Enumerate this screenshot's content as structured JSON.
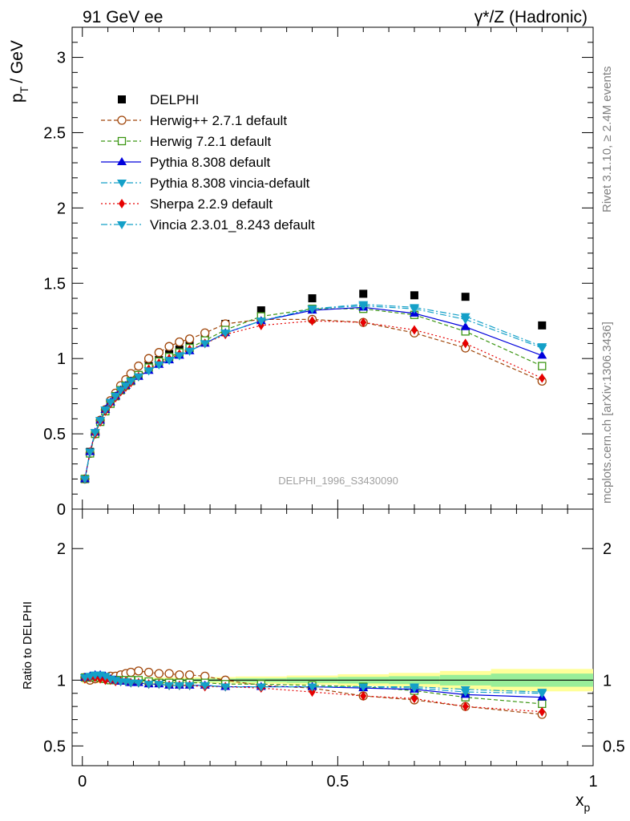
{
  "header": {
    "left": "91 GeV ee",
    "right": "γ*/Z (Hadronic)"
  },
  "side": {
    "rivet": "Rivet 3.1.10, ≥ 2.4M events",
    "mcplots": "mcplots.cern.ch [arXiv:1306.3436]"
  },
  "watermark": "DELPHI_1996_S3430090",
  "colors": {
    "DELPHI": "#000000",
    "Herwig++ 2.7.1 default": "#a0460a",
    "Herwig 7.2.1 default": "#3c9614",
    "Pythia 8.308 default": "#0000dc",
    "Pythia 8.308 vincia-default": "#14a0c8",
    "Sherpa 2.2.9 default": "#e60000",
    "Vincia 2.3.01_8.243 default": "#14a0c8"
  },
  "chart_data": [
    {
      "type": "scatter",
      "panel": "main",
      "ylabel_main": "p",
      "ylabel_sub": "T",
      "ylabel_unit": "/ GeV",
      "ylim": [
        0,
        3.2
      ],
      "yticks": [
        "0",
        "0.5",
        "1",
        "1.5",
        "2",
        "2.5",
        "3"
      ],
      "xlim": [
        -0.02,
        1.0
      ],
      "xticks": [
        "0",
        "0.5",
        "1"
      ],
      "x": [
        0.005,
        0.015,
        0.025,
        0.035,
        0.045,
        0.055,
        0.065,
        0.075,
        0.085,
        0.095,
        0.11,
        0.13,
        0.15,
        0.17,
        0.19,
        0.21,
        0.24,
        0.28,
        0.35,
        0.45,
        0.55,
        0.65,
        0.75,
        0.9
      ],
      "series": [
        {
          "name": "DELPHI",
          "marker": "square",
          "line": "none",
          "values": [
            0.2,
            0.38,
            0.5,
            0.58,
            0.65,
            0.7,
            0.75,
            0.79,
            0.82,
            0.85,
            0.89,
            0.95,
            0.99,
            1.03,
            1.06,
            1.09,
            1.14,
            1.23,
            1.32,
            1.4,
            1.43,
            1.42,
            1.41,
            1.22
          ]
        },
        {
          "name": "Herwig++ 2.7.1 default",
          "marker": "circle-open",
          "line": "dashed",
          "values": [
            0.2,
            0.37,
            0.5,
            0.59,
            0.66,
            0.72,
            0.77,
            0.82,
            0.86,
            0.9,
            0.95,
            1.0,
            1.04,
            1.08,
            1.11,
            1.13,
            1.17,
            1.23,
            1.26,
            1.26,
            1.24,
            1.17,
            1.07,
            0.85
          ]
        },
        {
          "name": "Herwig 7.2.1 default",
          "marker": "square-open",
          "line": "dashed",
          "values": [
            0.2,
            0.37,
            0.5,
            0.58,
            0.65,
            0.7,
            0.75,
            0.79,
            0.82,
            0.85,
            0.89,
            0.94,
            0.98,
            1.01,
            1.04,
            1.07,
            1.12,
            1.19,
            1.28,
            1.33,
            1.33,
            1.29,
            1.18,
            0.95
          ]
        },
        {
          "name": "Pythia 8.308 default",
          "marker": "triangle-up",
          "line": "solid",
          "values": [
            0.2,
            0.38,
            0.51,
            0.59,
            0.66,
            0.71,
            0.75,
            0.79,
            0.82,
            0.85,
            0.88,
            0.92,
            0.96,
            0.99,
            1.02,
            1.05,
            1.1,
            1.17,
            1.25,
            1.32,
            1.34,
            1.3,
            1.21,
            1.02
          ]
        },
        {
          "name": "Pythia 8.308 vincia-default",
          "marker": "triangle-down",
          "line": "dashdot",
          "values": [
            0.2,
            0.38,
            0.51,
            0.59,
            0.66,
            0.71,
            0.75,
            0.79,
            0.82,
            0.85,
            0.88,
            0.92,
            0.96,
            0.99,
            1.02,
            1.05,
            1.1,
            1.17,
            1.25,
            1.33,
            1.36,
            1.34,
            1.28,
            1.08
          ]
        },
        {
          "name": "Sherpa 2.2.9 default",
          "marker": "diamond",
          "line": "dotted",
          "values": [
            0.2,
            0.38,
            0.5,
            0.58,
            0.65,
            0.7,
            0.74,
            0.78,
            0.81,
            0.84,
            0.88,
            0.93,
            0.97,
            1.0,
            1.03,
            1.06,
            1.1,
            1.16,
            1.22,
            1.25,
            1.24,
            1.19,
            1.1,
            0.87
          ]
        },
        {
          "name": "Vincia 2.3.01_8.243 default",
          "marker": "triangle-down",
          "line": "dashdot",
          "values": [
            0.2,
            0.38,
            0.51,
            0.59,
            0.66,
            0.71,
            0.75,
            0.79,
            0.82,
            0.85,
            0.88,
            0.92,
            0.96,
            0.99,
            1.02,
            1.05,
            1.1,
            1.17,
            1.25,
            1.33,
            1.35,
            1.33,
            1.26,
            1.07
          ]
        }
      ]
    },
    {
      "type": "scatter",
      "panel": "ratio",
      "ylabel": "Ratio to DELPHI",
      "ylim": [
        0.35,
        2.3
      ],
      "yticks": [
        "0.5",
        "1",
        "2"
      ],
      "xlim": [
        -0.02,
        1.0
      ],
      "xlabel_main": "x",
      "xlabel_sub": "p",
      "xticks": [
        "0",
        "0.5",
        "1"
      ],
      "band_x_edges": [
        0,
        0.02,
        0.04,
        0.06,
        0.08,
        0.1,
        0.12,
        0.14,
        0.16,
        0.18,
        0.2,
        0.22,
        0.26,
        0.3,
        0.4,
        0.5,
        0.6,
        0.7,
        0.8,
        1.0
      ],
      "band_inner": [
        0.015,
        0.012,
        0.01,
        0.01,
        0.01,
        0.01,
        0.01,
        0.01,
        0.01,
        0.01,
        0.01,
        0.012,
        0.012,
        0.015,
        0.02,
        0.025,
        0.03,
        0.04,
        0.05
      ],
      "band_outer": [
        0.025,
        0.022,
        0.02,
        0.02,
        0.02,
        0.02,
        0.02,
        0.02,
        0.02,
        0.02,
        0.02,
        0.022,
        0.024,
        0.028,
        0.035,
        0.045,
        0.055,
        0.07,
        0.085
      ],
      "x": [
        0.005,
        0.015,
        0.025,
        0.035,
        0.045,
        0.055,
        0.065,
        0.075,
        0.085,
        0.095,
        0.11,
        0.13,
        0.15,
        0.17,
        0.19,
        0.21,
        0.24,
        0.28,
        0.35,
        0.45,
        0.55,
        0.65,
        0.75,
        0.9
      ],
      "series": [
        {
          "name": "Herwig++ 2.7.1 default",
          "values": [
            1.02,
            1.0,
            1.01,
            1.02,
            1.02,
            1.03,
            1.03,
            1.04,
            1.05,
            1.06,
            1.07,
            1.06,
            1.05,
            1.05,
            1.04,
            1.04,
            1.03,
            1.0,
            0.96,
            0.94,
            0.88,
            0.85,
            0.8,
            0.74
          ]
        },
        {
          "name": "Herwig 7.2.1 default",
          "values": [
            1.02,
            1.02,
            1.03,
            1.02,
            1.01,
            1.0,
            1.0,
            1.0,
            1.0,
            1.0,
            1.0,
            0.99,
            0.98,
            0.98,
            0.98,
            0.98,
            0.98,
            0.97,
            0.97,
            0.96,
            0.95,
            0.92,
            0.87,
            0.82
          ]
        },
        {
          "name": "Pythia 8.308 default",
          "values": [
            1.02,
            1.03,
            1.04,
            1.04,
            1.03,
            1.01,
            1.0,
            0.99,
            0.99,
            0.98,
            0.98,
            0.97,
            0.97,
            0.96,
            0.96,
            0.96,
            0.96,
            0.95,
            0.95,
            0.95,
            0.94,
            0.93,
            0.89,
            0.87
          ]
        },
        {
          "name": "Pythia 8.308 vincia-default",
          "values": [
            1.02,
            1.03,
            1.04,
            1.04,
            1.03,
            1.01,
            1.0,
            0.99,
            0.99,
            0.98,
            0.98,
            0.97,
            0.97,
            0.96,
            0.96,
            0.96,
            0.96,
            0.95,
            0.95,
            0.95,
            0.95,
            0.95,
            0.93,
            0.91
          ]
        },
        {
          "name": "Sherpa 2.2.9 default",
          "values": [
            1.01,
            1.02,
            1.02,
            1.01,
            1.0,
            1.0,
            0.99,
            0.99,
            0.99,
            0.98,
            0.98,
            0.97,
            0.97,
            0.96,
            0.96,
            0.96,
            0.95,
            0.95,
            0.94,
            0.91,
            0.88,
            0.86,
            0.8,
            0.76
          ]
        },
        {
          "name": "Vincia 2.3.01_8.243 default",
          "values": [
            1.02,
            1.03,
            1.04,
            1.04,
            1.03,
            1.01,
            1.0,
            0.99,
            0.99,
            0.98,
            0.98,
            0.97,
            0.97,
            0.96,
            0.96,
            0.96,
            0.96,
            0.95,
            0.95,
            0.95,
            0.95,
            0.94,
            0.91,
            0.9
          ]
        }
      ]
    }
  ]
}
